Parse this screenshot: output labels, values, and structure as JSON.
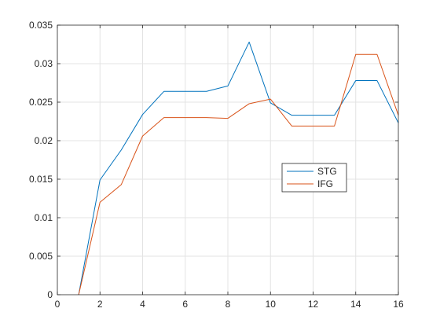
{
  "chart_data": {
    "type": "line",
    "title": "",
    "xlabel": "",
    "ylabel": "",
    "xlim": [
      0,
      16
    ],
    "ylim": [
      0,
      0.035
    ],
    "xticks": [
      0,
      2,
      4,
      6,
      8,
      10,
      12,
      14,
      16
    ],
    "xtick_labels": [
      "0",
      "2",
      "4",
      "6",
      "8",
      "10",
      "12",
      "14",
      "16"
    ],
    "yticks": [
      0,
      0.005,
      0.01,
      0.015,
      0.02,
      0.025,
      0.03,
      0.035
    ],
    "ytick_labels": [
      "0",
      "0.005",
      "0.01",
      "0.015",
      "0.02",
      "0.025",
      "0.03",
      "0.035"
    ],
    "grid": true,
    "legend_position": "center-right",
    "x": [
      1,
      2,
      3,
      4,
      5,
      6,
      7,
      8,
      9,
      10,
      11,
      12,
      13,
      14,
      15,
      16
    ],
    "series": [
      {
        "name": "STG",
        "color": "#0072bd",
        "values": [
          0,
          0.0149,
          0.0188,
          0.0234,
          0.0264,
          0.0264,
          0.0264,
          0.0271,
          0.0328,
          0.0249,
          0.0233,
          0.0233,
          0.0233,
          0.0278,
          0.0278,
          0.0223
        ]
      },
      {
        "name": "IFG",
        "color": "#d95319",
        "values": [
          0,
          0.012,
          0.0143,
          0.0206,
          0.023,
          0.023,
          0.023,
          0.0229,
          0.0248,
          0.0254,
          0.0219,
          0.0219,
          0.0219,
          0.0312,
          0.0312,
          0.0233
        ]
      }
    ]
  }
}
